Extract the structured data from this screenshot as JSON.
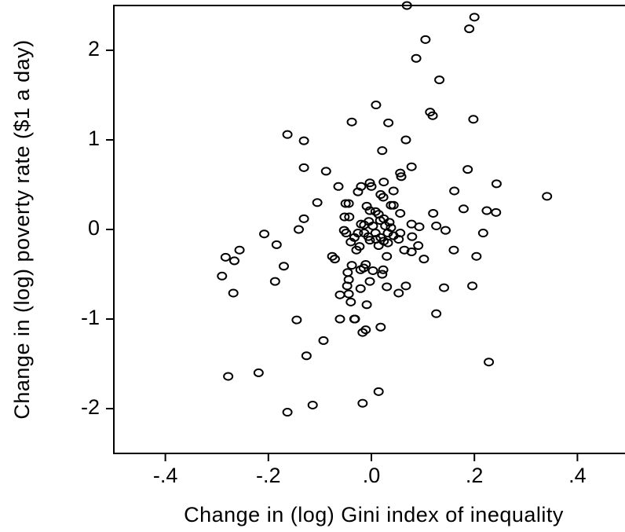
{
  "chart_data": {
    "type": "scatter",
    "x_label": "Change in (log) Gini index of inequality",
    "y_label": "Change in (log) poverty rate ($1 a day)",
    "color": "#000000",
    "xlim": [
      -0.5,
      0.5
    ],
    "ylim": [
      -2.5,
      2.5
    ],
    "xticks": [
      {
        "value": -0.4,
        "label": "-.4"
      },
      {
        "value": -0.2,
        "label": "-.2"
      },
      {
        "value": 0,
        "label": ".0"
      },
      {
        "value": 0.2,
        "label": ".2"
      },
      {
        "value": 0.4,
        "label": ".4"
      }
    ],
    "yticks": [
      2,
      1,
      0,
      -1,
      -2
    ],
    "x": [
      0.069,
      0.2,
      0.19,
      0.105,
      0.087,
      0.132,
      0.009,
      0.114,
      0.119,
      0.198,
      -0.038,
      0.033,
      -0.163,
      -0.131,
      0.067,
      0.021,
      -0.131,
      0.078,
      -0.088,
      0.187,
      0.056,
      0.058,
      0.243,
      -0.064,
      -0.02,
      -0.003,
      0,
      0.024,
      -0.026,
      0.043,
      0.018,
      0.023,
      0.161,
      0.341,
      -0.105,
      -0.05,
      -0.044,
      -0.009,
      0.038,
      0.043,
      -0.003,
      0.008,
      0.014,
      0.056,
      0.12,
      0.224,
      0.242,
      0.179,
      -0.131,
      -0.052,
      -0.043,
      0.024,
      -0.02,
      -0.014,
      0.003,
      0.017,
      0.035,
      0.078,
      0.093,
      0.126,
      -0.005,
      0.027,
      0.038,
      -0.141,
      -0.053,
      0.144,
      -0.026,
      -0.014,
      0.008,
      0.032,
      0.056,
      -0.049,
      0.217,
      -0.208,
      -0.033,
      -0.006,
      0.018,
      0.043,
      -0.003,
      0.009,
      0.024,
      0.032,
      -0.04,
      0.053,
      0.079,
      -0.184,
      -0.023,
      0.014,
      0.091,
      -0.256,
      -0.029,
      0.064,
      0.078,
      0.16,
      -0.283,
      -0.266,
      -0.071,
      -0.076,
      0.03,
      0.102,
      0.204,
      -0.17,
      -0.038,
      -0.011,
      -0.015,
      -0.021,
      0.003,
      0.023,
      -0.046,
      0.021,
      -0.29,
      -0.044,
      -0.187,
      -0.003,
      -0.047,
      0.03,
      0.067,
      0.196,
      -0.021,
      0.141,
      -0.268,
      -0.061,
      -0.044,
      0.053,
      -0.04,
      -0.009,
      -0.061,
      -0.145,
      -0.033,
      -0.032,
      0.018,
      0.126,
      -0.011,
      -0.017,
      -0.093,
      -0.126,
      0.228,
      -0.219,
      -0.278,
      0.014,
      -0.017,
      -0.114,
      -0.163
    ],
    "values": [
      2.5,
      2.37,
      2.24,
      2.12,
      1.91,
      1.67,
      1.39,
      1.31,
      1.27,
      1.23,
      1.2,
      1.19,
      1.06,
      0.99,
      1.0,
      0.88,
      0.69,
      0.7,
      0.65,
      0.67,
      0.63,
      0.59,
      0.51,
      0.48,
      0.48,
      0.52,
      0.48,
      0.53,
      0.42,
      0.43,
      0.39,
      0.36,
      0.43,
      0.37,
      0.3,
      0.29,
      0.29,
      0.26,
      0.27,
      0.27,
      0.21,
      0.2,
      0.17,
      0.18,
      0.18,
      0.21,
      0.19,
      0.23,
      0.12,
      0.14,
      0.14,
      0.12,
      0.06,
      0.05,
      0.04,
      0.1,
      0.08,
      0.06,
      0.03,
      0.04,
      0.09,
      0.04,
      0.02,
      0,
      -0.01,
      -0.01,
      -0.04,
      -0.04,
      -0.04,
      -0.04,
      -0.04,
      -0.04,
      -0.04,
      -0.05,
      -0.09,
      -0.08,
      -0.09,
      -0.07,
      -0.12,
      -0.11,
      -0.13,
      -0.15,
      -0.14,
      -0.11,
      -0.08,
      -0.17,
      -0.19,
      -0.18,
      -0.18,
      -0.23,
      -0.23,
      -0.23,
      -0.25,
      -0.23,
      -0.31,
      -0.35,
      -0.33,
      -0.3,
      -0.3,
      -0.33,
      -0.3,
      -0.41,
      -0.4,
      -0.39,
      -0.43,
      -0.45,
      -0.46,
      -0.45,
      -0.48,
      -0.5,
      -0.52,
      -0.56,
      -0.58,
      -0.58,
      -0.63,
      -0.64,
      -0.63,
      -0.63,
      -0.66,
      -0.65,
      -0.71,
      -0.73,
      -0.72,
      -0.71,
      -0.81,
      -0.84,
      -1.0,
      -1.01,
      -1.0,
      -1.0,
      -1.09,
      -0.94,
      -1.12,
      -1.15,
      -1.24,
      -1.41,
      -1.48,
      -1.6,
      -1.64,
      -1.81,
      -1.94,
      -1.96,
      -2.04
    ]
  }
}
